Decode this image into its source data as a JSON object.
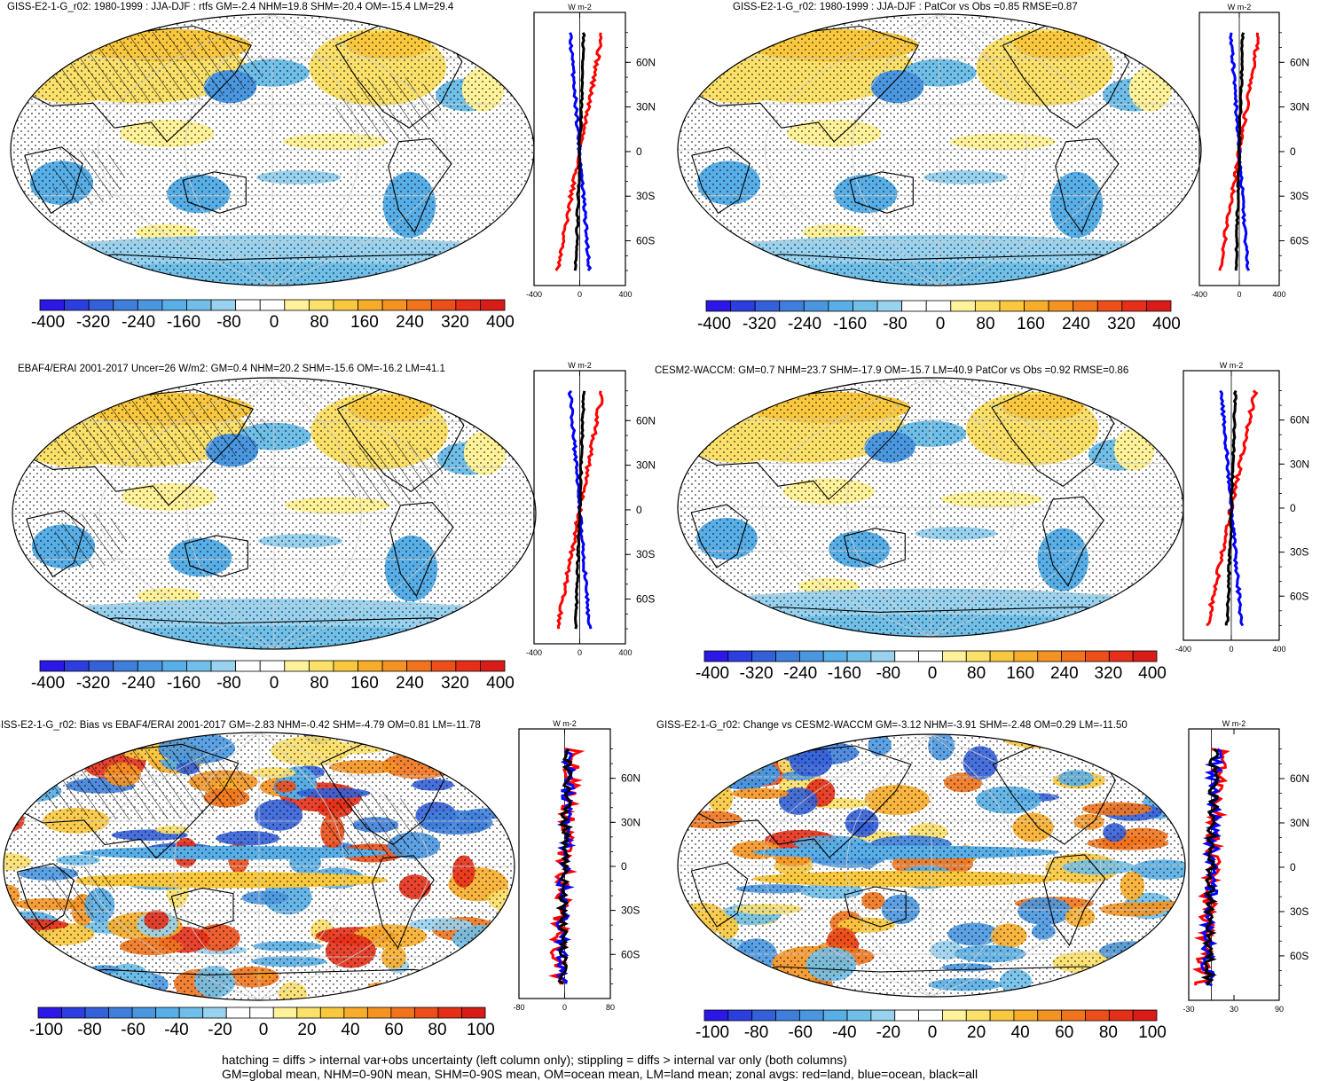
{
  "panels": [
    {
      "id": "p1",
      "title": "GISS-E2-1-G_r02: 1980-1999 : JJA-DJF : rtfs GM=-2.4 NHM=19.8 SHM=-20.4 OM=-15.4 LM=29.4",
      "hatching": true,
      "scale": "large",
      "zonal_unit": "W m-2",
      "zonal_xticks": [
        "-400",
        "0",
        "400"
      ],
      "zonal_yticks": [
        "60N",
        "30N",
        "0",
        "30S",
        "60S"
      ],
      "colorbar_labels": [
        "-400",
        "-320",
        "-240",
        "-160",
        "-80",
        "0",
        "80",
        "160",
        "240",
        "320",
        "400"
      ]
    },
    {
      "id": "p2",
      "title": "GISS-E2-1-G_r02: 1980-1999 : JJA-DJF : PatCor vs Obs =0.85 RMSE=0.87",
      "hatching": false,
      "scale": "large",
      "zonal_unit": "W m-2",
      "zonal_xticks": [
        "-400",
        "0",
        "400"
      ],
      "zonal_yticks": [
        "60N",
        "30N",
        "0",
        "30S",
        "60S"
      ],
      "colorbar_labels": [
        "-400",
        "-320",
        "-240",
        "-160",
        "-80",
        "0",
        "80",
        "160",
        "240",
        "320",
        "400"
      ]
    },
    {
      "id": "p3",
      "title": "EBAF4/ERAI 2001-2017 Uncer=26 W/m2: GM=0.4 NHM=20.2 SHM=-15.6 OM=-16.2 LM=41.1",
      "hatching": true,
      "scale": "large",
      "zonal_unit": "W m-2",
      "zonal_xticks": [
        "-400",
        "0",
        "400"
      ],
      "zonal_yticks": [
        "60N",
        "30N",
        "0",
        "30S",
        "60S"
      ],
      "colorbar_labels": [
        "-400",
        "-320",
        "-240",
        "-160",
        "-80",
        "0",
        "80",
        "160",
        "240",
        "320",
        "400"
      ]
    },
    {
      "id": "p4",
      "title": "CESM2-WACCM: GM=0.7 NHM=23.7 SHM=-17.9 OM=-15.7 LM=40.9 PatCor vs Obs =0.92 RMSE=0.86",
      "hatching": false,
      "scale": "large",
      "zonal_unit": "W m-2",
      "zonal_xticks": [
        "-400",
        "0",
        "400"
      ],
      "zonal_yticks": [
        "60N",
        "30N",
        "0",
        "30S",
        "60S"
      ],
      "colorbar_labels": [
        "-400",
        "-320",
        "-240",
        "-160",
        "-80",
        "0",
        "80",
        "160",
        "240",
        "320",
        "400"
      ]
    },
    {
      "id": "p5",
      "title": "GISS-E2-1-G_r02: Bias vs EBAF4/ERAI 2001-2017 GM=-2.83 NHM=-0.42 SHM=-4.79 OM=0.81 LM=-11.78",
      "hatching": true,
      "scale": "small",
      "zonal_unit": "W m-2",
      "zonal_xticks": [
        "-80",
        "0",
        "80"
      ],
      "zonal_yticks": [
        "60N",
        "30N",
        "0",
        "30S",
        "60S"
      ],
      "colorbar_labels": [
        "-100",
        "-80",
        "-60",
        "-40",
        "-20",
        "0",
        "20",
        "40",
        "60",
        "80",
        "100"
      ]
    },
    {
      "id": "p6",
      "title": "GISS-E2-1-G_r02: Change vs CESM2-WACCM GM=-3.12 NHM=-3.91 SHM=-2.48 OM=0.29 LM=-11.50",
      "hatching": false,
      "scale": "small",
      "zonal_unit": "W m-2",
      "zonal_xticks": [
        "-30",
        "30",
        "90"
      ],
      "zonal_yticks": [
        "60N",
        "30N",
        "0",
        "30S",
        "60S"
      ],
      "colorbar_labels": [
        "-100",
        "-80",
        "-60",
        "-40",
        "-20",
        "0",
        "20",
        "40",
        "60",
        "80",
        "100"
      ]
    }
  ],
  "colors": {
    "palette": [
      "#2b17e6",
      "#2d3ee0",
      "#3461d9",
      "#3f7fdb",
      "#4a97e0",
      "#58aee6",
      "#6fbfe9",
      "#98d2ef",
      "#ffffff",
      "#ffffff",
      "#fff29a",
      "#fbe06a",
      "#f9c83e",
      "#f7ad2a",
      "#f59322",
      "#f1741d",
      "#ec4f1a",
      "#e52f18",
      "#d91c18"
    ],
    "land_line": "#000000",
    "zonal_land": "#ff0000",
    "zonal_ocean": "#0000ff",
    "zonal_all": "#000000"
  },
  "footer": {
    "line1": "hatching = diffs > internal var+obs uncertainty (left column only); stippling = diffs > internal var only (both columns)",
    "line2": "GM=global mean, NHM=0-90N mean, SHM=0-90S mean, OM=ocean mean, LM=land mean; zonal avgs: red=land, blue=ocean, black=all"
  }
}
